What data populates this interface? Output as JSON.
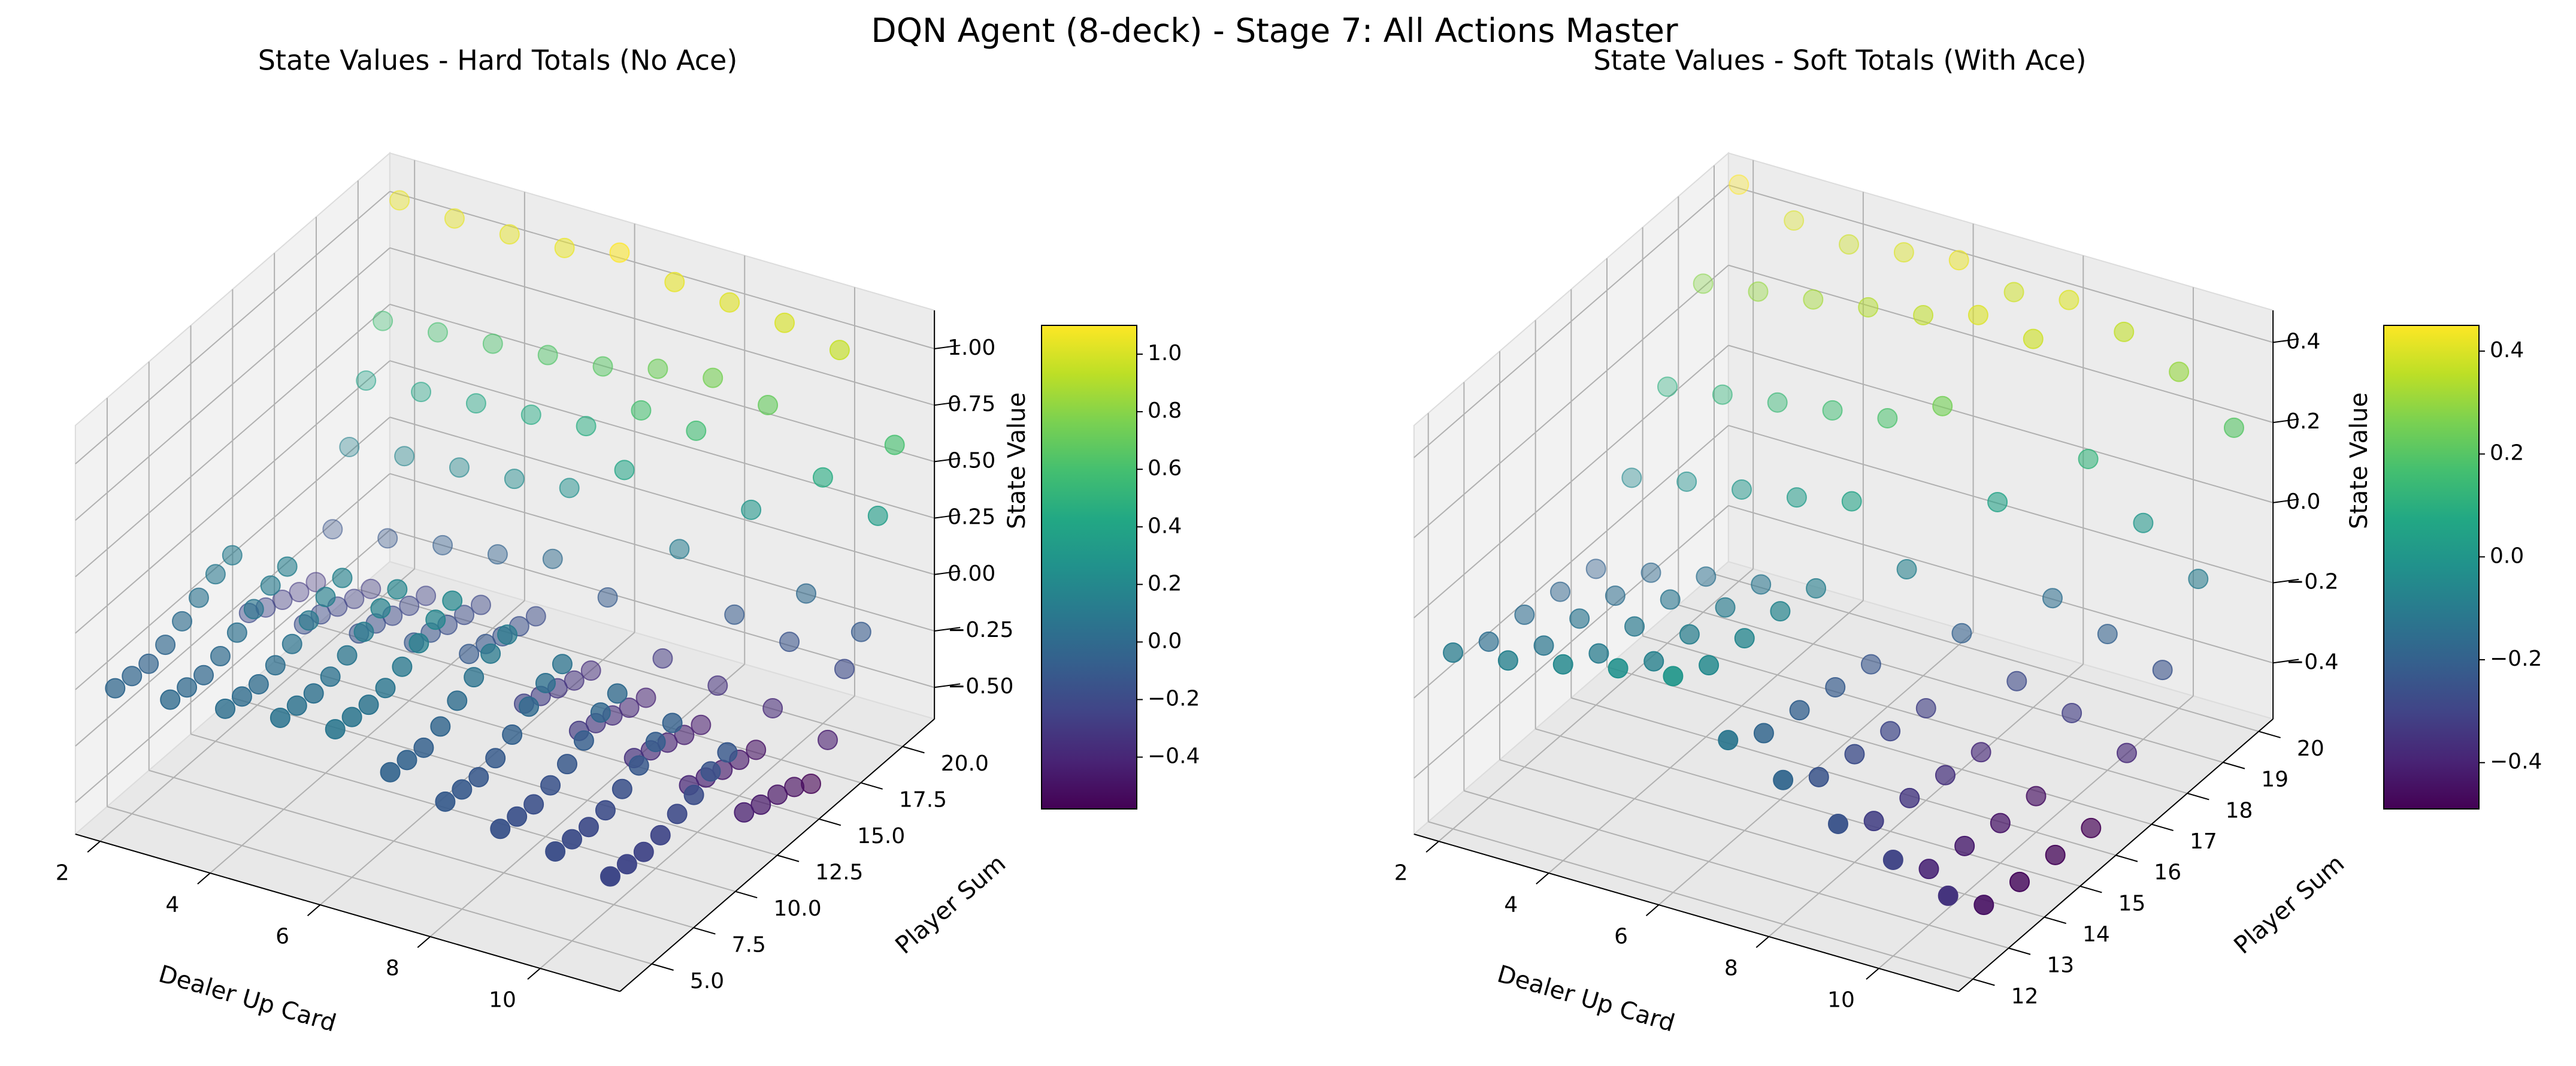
{
  "title": "DQN Agent (8-deck) - Stage 7: All Actions Master",
  "chart_data": [
    {
      "type": "scatter3d",
      "title": "State Values - Hard Totals (No Ace)",
      "xlabel": "Dealer Up Card",
      "ylabel": "Player Sum",
      "colorbar_label": "State Value",
      "colormap": "viridis",
      "x": [
        2,
        3,
        4,
        5,
        6,
        7,
        8,
        9,
        10,
        11
      ],
      "y": [
        4,
        5,
        6,
        7,
        8,
        9,
        10,
        11,
        12,
        13,
        14,
        15,
        16,
        17,
        18,
        19,
        20,
        21
      ],
      "values": [
        [
          -0.02,
          0.0,
          0.03,
          0.06,
          0.08,
          -0.04,
          -0.1,
          -0.15,
          -0.18,
          -0.22
        ],
        [
          -0.03,
          -0.01,
          0.02,
          0.05,
          0.07,
          -0.05,
          -0.11,
          -0.16,
          -0.19,
          -0.23
        ],
        [
          -0.04,
          -0.02,
          0.01,
          0.04,
          0.06,
          -0.06,
          -0.12,
          -0.17,
          -0.2,
          -0.24
        ],
        [
          -0.02,
          0.0,
          0.03,
          0.05,
          0.07,
          -0.03,
          -0.1,
          -0.15,
          -0.19,
          -0.23
        ],
        [
          0.02,
          0.04,
          0.06,
          0.08,
          0.1,
          0.02,
          -0.06,
          -0.12,
          -0.16,
          -0.2
        ],
        [
          0.06,
          0.08,
          0.1,
          0.12,
          0.14,
          0.06,
          0.0,
          -0.08,
          -0.12,
          -0.18
        ],
        [
          0.1,
          0.12,
          0.14,
          0.16,
          0.18,
          0.1,
          0.04,
          -0.02,
          -0.08,
          -0.14
        ],
        [
          0.12,
          0.14,
          0.16,
          0.18,
          0.2,
          0.12,
          0.06,
          0.0,
          -0.06,
          -0.12
        ],
        [
          -0.2,
          -0.18,
          -0.15,
          -0.12,
          -0.1,
          -0.25,
          -0.3,
          -0.35,
          -0.4,
          -0.45
        ],
        [
          -0.24,
          -0.2,
          -0.17,
          -0.14,
          -0.12,
          -0.28,
          -0.33,
          -0.38,
          -0.43,
          -0.48
        ],
        [
          -0.27,
          -0.23,
          -0.2,
          -0.17,
          -0.15,
          -0.31,
          -0.36,
          -0.41,
          -0.46,
          -0.5
        ],
        [
          -0.3,
          -0.26,
          -0.22,
          -0.19,
          -0.17,
          -0.34,
          -0.39,
          -0.44,
          -0.48,
          -0.53
        ],
        [
          -0.32,
          -0.28,
          -0.24,
          -0.21,
          -0.19,
          -0.36,
          -0.41,
          -0.46,
          -0.5,
          -0.58
        ],
        [
          -0.15,
          -0.12,
          -0.08,
          -0.05,
          0.0,
          -0.1,
          -0.3,
          -0.35,
          -0.38,
          -0.45
        ],
        [
          0.15,
          0.18,
          0.2,
          0.22,
          0.25,
          0.4,
          0.12,
          -0.1,
          -0.15,
          -0.2
        ],
        [
          0.38,
          0.4,
          0.42,
          0.44,
          0.46,
          0.6,
          0.58,
          0.3,
          0.0,
          -0.1
        ],
        [
          0.58,
          0.6,
          0.62,
          0.64,
          0.66,
          0.72,
          0.75,
          0.7,
          0.45,
          0.35
        ],
        [
          1.05,
          1.04,
          1.04,
          1.05,
          1.1,
          1.04,
          1.02,
          1.0,
          0.95,
          0.6
        ]
      ],
      "xlim": [
        1.55,
        11.45
      ],
      "ylim": [
        3.1,
        21.9
      ],
      "zlim": [
        -0.64,
        1.17
      ],
      "clim": [
        -0.58,
        1.1
      ],
      "xticks": [
        2,
        4,
        6,
        8,
        10
      ],
      "yticks": [
        {
          "value": 5,
          "label": "5.0"
        },
        7.5,
        {
          "value": 10,
          "label": "10.0"
        },
        12.5,
        {
          "value": 15,
          "label": "15.0"
        },
        17.5,
        {
          "value": 20,
          "label": "20.0"
        }
      ],
      "zticks": [
        {
          "value": -0.5,
          "label": "−0.50"
        },
        {
          "value": -0.25,
          "label": "−0.25"
        },
        {
          "value": 0,
          "label": "0.00"
        },
        0.25,
        {
          "value": 0.5,
          "label": "0.50"
        },
        0.75,
        {
          "value": 1,
          "label": "1.00"
        }
      ],
      "cticks": [
        {
          "value": -0.4,
          "label": "−0.4"
        },
        {
          "value": -0.2,
          "label": "−0.2"
        },
        {
          "value": 0,
          "label": "0.0"
        },
        0.2,
        0.4,
        0.6,
        0.8,
        {
          "value": 1,
          "label": "1.0"
        }
      ]
    },
    {
      "type": "scatter3d",
      "title": "State Values - Soft Totals (With Ace)",
      "xlabel": "Dealer Up Card",
      "ylabel": "Player Sum",
      "colorbar_label": "State Value",
      "colormap": "viridis",
      "x": [
        2,
        3,
        4,
        5,
        6,
        7,
        8,
        9,
        10,
        11
      ],
      "y": [
        12,
        13,
        14,
        15,
        16,
        17,
        18,
        19,
        20
      ],
      "values": [
        [
          -0.1,
          -0.08,
          -0.05,
          -0.02,
          0.0,
          -0.12,
          -0.18,
          -0.25,
          -0.3,
          -0.35
        ],
        [
          -0.15,
          -0.12,
          -0.1,
          -0.08,
          -0.05,
          -0.18,
          -0.25,
          -0.32,
          -0.4,
          -0.45
        ],
        [
          -0.16,
          -0.13,
          -0.11,
          -0.09,
          -0.06,
          -0.2,
          -0.27,
          -0.34,
          -0.42,
          -0.47
        ],
        [
          -0.18,
          -0.15,
          -0.12,
          -0.1,
          -0.07,
          -0.22,
          -0.29,
          -0.36,
          -0.44,
          -0.48
        ],
        [
          -0.2,
          -0.17,
          -0.14,
          -0.12,
          -0.09,
          -0.24,
          -0.31,
          -0.38,
          -0.45,
          -0.49
        ],
        [
          -0.05,
          -0.02,
          0.0,
          0.02,
          0.05,
          -0.08,
          -0.2,
          -0.28,
          -0.32,
          -0.38
        ],
        [
          0.1,
          0.12,
          0.14,
          0.16,
          0.18,
          0.25,
          0.05,
          -0.15,
          -0.2,
          -0.25
        ],
        [
          0.28,
          0.3,
          0.32,
          0.34,
          0.36,
          0.4,
          0.38,
          0.12,
          0.0,
          -0.1
        ],
        [
          0.45,
          0.4,
          0.38,
          0.4,
          0.42,
          0.38,
          0.4,
          0.36,
          0.3,
          0.2
        ]
      ],
      "xlim": [
        1.55,
        11.45
      ],
      "ylim": [
        11.6,
        20.4
      ],
      "zlim": [
        -0.54,
        0.48
      ],
      "clim": [
        -0.49,
        0.45
      ],
      "xticks": [
        2,
        4,
        6,
        8,
        10
      ],
      "yticks": [
        12,
        13,
        14,
        15,
        16,
        17,
        18,
        19,
        20
      ],
      "zticks": [
        {
          "value": -0.4,
          "label": "−0.4"
        },
        {
          "value": -0.2,
          "label": "−0.2"
        },
        {
          "value": 0,
          "label": "0.0"
        },
        0.2,
        0.4
      ],
      "cticks": [
        {
          "value": -0.4,
          "label": "−0.4"
        },
        {
          "value": -0.2,
          "label": "−0.2"
        },
        {
          "value": 0,
          "label": "0.0"
        },
        0.2,
        0.4
      ]
    }
  ]
}
